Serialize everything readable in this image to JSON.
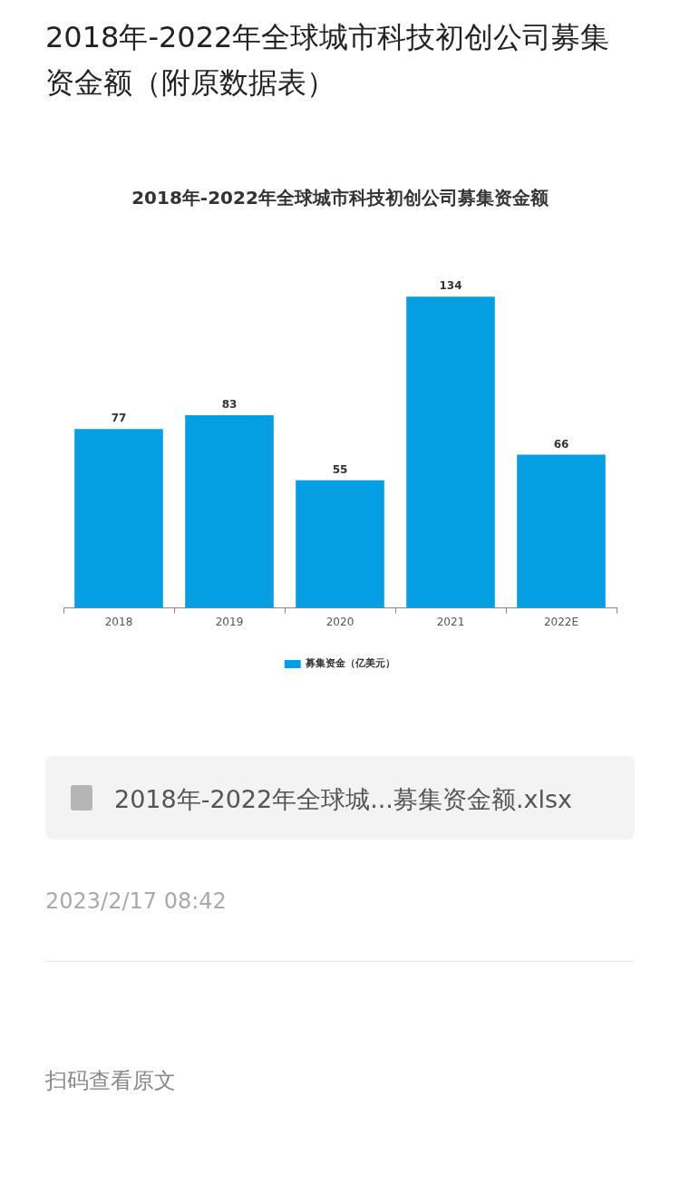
{
  "chart_data": {
    "type": "bar",
    "title": "2018年-2022年全球城市科技初创公司募集资金额",
    "categories": [
      "2018",
      "2019",
      "2020",
      "2021",
      "2022E"
    ],
    "series": [
      {
        "name": "募集资金（亿美元）",
        "color": "#049fe3",
        "values": [
          77,
          83,
          55,
          134,
          66
        ]
      }
    ],
    "data_labels": true,
    "grid": false,
    "legend": "bottom",
    "tick_labels": "x",
    "annotations": [
      "2018年-2022年全球城市科技初创公司募集资金额（附原数据表）",
      "2018年-2022年全球城...募集资金额.xlsx",
      "2023/2/17 08:42",
      "扫码查看原文"
    ]
  }
}
